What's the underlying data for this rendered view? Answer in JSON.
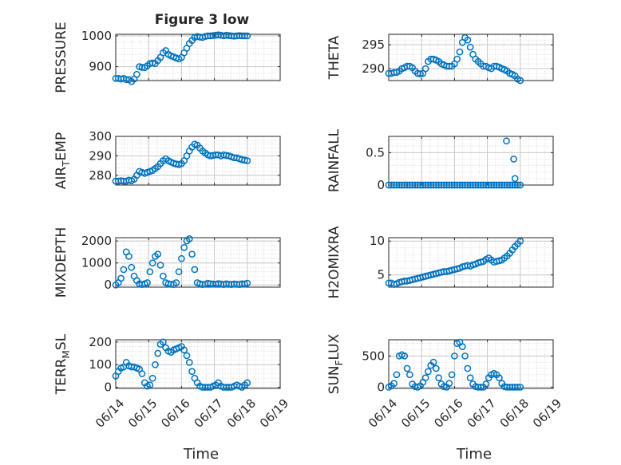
{
  "title": "Figure 3 low",
  "xlabel": "Time",
  "x_tick_labels": [
    "06/14",
    "06/15",
    "06/16",
    "06/17",
    "06/18",
    "06/19"
  ],
  "marker_color": "#0072bd",
  "chart_data": [
    {
      "id": "pressure",
      "type": "scatter",
      "ylabel": "PRESSURE",
      "xlim": [
        0,
        5
      ],
      "ylim": [
        855,
        1005
      ],
      "yticks": [
        900,
        1000
      ],
      "grid": true,
      "x": [
        0.0,
        0.08,
        0.16,
        0.24,
        0.32,
        0.4,
        0.48,
        0.56,
        0.64,
        0.72,
        0.8,
        0.88,
        0.96,
        1.04,
        1.12,
        1.2,
        1.28,
        1.36,
        1.44,
        1.52,
        1.6,
        1.68,
        1.76,
        1.84,
        1.92,
        2.0,
        2.08,
        2.16,
        2.24,
        2.32,
        2.4,
        2.48,
        2.56,
        2.64,
        2.72,
        2.8,
        2.88,
        2.96,
        3.04,
        3.12,
        3.2,
        3.28,
        3.36,
        3.44,
        3.52,
        3.6,
        3.68,
        3.76,
        3.84,
        3.92,
        4.0
      ],
      "y": [
        862,
        862,
        860,
        862,
        858,
        858,
        852,
        860,
        875,
        900,
        898,
        897,
        903,
        910,
        912,
        910,
        920,
        930,
        945,
        952,
        940,
        935,
        932,
        928,
        925,
        930,
        945,
        960,
        975,
        985,
        995,
        998,
        996,
        995,
        998,
        1000,
        1000,
        1001,
        1002,
        1003,
        1002,
        1000,
        1002,
        1001,
        1000,
        999,
        1000,
        1001,
        1000,
        1000,
        1000
      ]
    },
    {
      "id": "theta",
      "type": "scatter",
      "ylabel": "THETA",
      "xlim": [
        0,
        5
      ],
      "ylim": [
        287.5,
        297.2
      ],
      "yticks": [
        290,
        295
      ],
      "grid": true,
      "x": [
        0.0,
        0.08,
        0.16,
        0.24,
        0.32,
        0.4,
        0.48,
        0.56,
        0.64,
        0.72,
        0.8,
        0.88,
        0.96,
        1.04,
        1.12,
        1.2,
        1.28,
        1.36,
        1.44,
        1.52,
        1.6,
        1.68,
        1.76,
        1.84,
        1.92,
        2.0,
        2.08,
        2.16,
        2.24,
        2.32,
        2.4,
        2.48,
        2.56,
        2.64,
        2.72,
        2.8,
        2.88,
        2.96,
        3.04,
        3.12,
        3.2,
        3.28,
        3.36,
        3.44,
        3.52,
        3.6,
        3.68,
        3.76,
        3.84,
        3.92,
        4.0
      ],
      "y": [
        289.0,
        289.0,
        289.2,
        289.2,
        289.5,
        290.0,
        290.2,
        290.5,
        290.5,
        290.2,
        289.5,
        289.0,
        288.9,
        289.0,
        290.0,
        291.5,
        292.0,
        292.0,
        291.8,
        291.5,
        291.0,
        290.8,
        290.5,
        290.5,
        290.5,
        291.0,
        292.0,
        293.5,
        295.5,
        296.5,
        296.0,
        294.5,
        293.0,
        292.0,
        291.5,
        291.0,
        290.5,
        290.5,
        290.2,
        290.0,
        290.5,
        290.5,
        290.3,
        290.0,
        289.8,
        289.5,
        289.0,
        288.8,
        288.5,
        287.8,
        287.5
      ]
    },
    {
      "id": "air_temp",
      "type": "scatter",
      "ylabel": "AIR_TEMP",
      "xlim": [
        0,
        5
      ],
      "ylim": [
        275,
        300
      ],
      "yticks": [
        280,
        290,
        300
      ],
      "grid": true,
      "x": [
        0.0,
        0.08,
        0.16,
        0.24,
        0.32,
        0.4,
        0.48,
        0.56,
        0.64,
        0.72,
        0.8,
        0.88,
        0.96,
        1.04,
        1.12,
        1.2,
        1.28,
        1.36,
        1.44,
        1.52,
        1.6,
        1.68,
        1.76,
        1.84,
        1.92,
        2.0,
        2.08,
        2.16,
        2.24,
        2.32,
        2.4,
        2.48,
        2.56,
        2.64,
        2.72,
        2.8,
        2.88,
        2.96,
        3.04,
        3.12,
        3.2,
        3.28,
        3.36,
        3.44,
        3.52,
        3.6,
        3.68,
        3.76,
        3.84,
        3.92,
        4.0
      ],
      "y": [
        277.0,
        277.0,
        277.2,
        277.0,
        277.0,
        277.5,
        277.2,
        278.0,
        280.0,
        282.0,
        281.5,
        281.0,
        281.5,
        282.0,
        282.5,
        283.5,
        284.5,
        286.0,
        287.5,
        288.5,
        287.5,
        286.8,
        286.2,
        285.8,
        285.5,
        286.0,
        287.5,
        290.0,
        292.5,
        294.5,
        296.0,
        295.5,
        294.0,
        292.5,
        291.5,
        290.5,
        290.0,
        290.2,
        290.5,
        290.5,
        290.0,
        290.5,
        290.2,
        290.0,
        289.5,
        289.0,
        289.0,
        288.5,
        288.0,
        287.8,
        287.5
      ]
    },
    {
      "id": "rainfall",
      "type": "scatter",
      "ylabel": "RAINFALL",
      "xlim": [
        0,
        5
      ],
      "ylim": [
        0,
        0.75
      ],
      "yticks": [
        0,
        0.5
      ],
      "grid": true,
      "x": [
        0.0,
        0.08,
        0.16,
        0.24,
        0.32,
        0.4,
        0.48,
        0.56,
        0.64,
        0.72,
        0.8,
        0.88,
        0.96,
        1.04,
        1.12,
        1.2,
        1.28,
        1.36,
        1.44,
        1.52,
        1.6,
        1.68,
        1.76,
        1.84,
        1.92,
        2.0,
        2.08,
        2.16,
        2.24,
        2.32,
        2.4,
        2.48,
        2.56,
        2.64,
        2.72,
        2.8,
        2.88,
        2.96,
        3.04,
        3.12,
        3.2,
        3.28,
        3.36,
        3.44,
        3.52,
        3.6,
        3.68,
        3.76,
        3.84,
        3.92,
        4.0,
        3.58,
        3.8,
        3.84
      ],
      "y": [
        0,
        0,
        0,
        0,
        0,
        0,
        0,
        0,
        0,
        0,
        0,
        0,
        0,
        0,
        0,
        0,
        0,
        0,
        0,
        0,
        0,
        0,
        0,
        0,
        0,
        0,
        0,
        0,
        0,
        0,
        0,
        0,
        0,
        0,
        0,
        0,
        0,
        0,
        0,
        0,
        0,
        0,
        0,
        0,
        0,
        0,
        0,
        0,
        0,
        0,
        0,
        0.68,
        0.4,
        0.1
      ]
    },
    {
      "id": "mixdepth",
      "type": "scatter",
      "ylabel": "MIXDEPTH",
      "xlim": [
        0,
        5
      ],
      "ylim": [
        -100,
        2150
      ],
      "yticks": [
        0,
        1000,
        2000
      ],
      "grid": true,
      "x": [
        0.0,
        0.08,
        0.16,
        0.24,
        0.32,
        0.4,
        0.48,
        0.56,
        0.64,
        0.72,
        0.8,
        0.88,
        0.96,
        1.04,
        1.12,
        1.2,
        1.28,
        1.36,
        1.44,
        1.52,
        1.6,
        1.68,
        1.76,
        1.84,
        1.92,
        2.0,
        2.08,
        2.16,
        2.24,
        2.32,
        2.4,
        2.48,
        2.56,
        2.64,
        2.72,
        2.8,
        2.88,
        2.96,
        3.04,
        3.12,
        3.2,
        3.28,
        3.36,
        3.44,
        3.52,
        3.6,
        3.68,
        3.76,
        3.84,
        3.92,
        4.0
      ],
      "y": [
        0,
        100,
        300,
        700,
        1500,
        1300,
        800,
        400,
        200,
        50,
        20,
        50,
        100,
        600,
        1000,
        1300,
        1400,
        900,
        400,
        100,
        50,
        30,
        20,
        100,
        600,
        1200,
        1700,
        2000,
        2100,
        1400,
        700,
        100,
        50,
        20,
        30,
        80,
        50,
        40,
        30,
        60,
        40,
        20,
        50,
        30,
        20,
        40,
        30,
        20,
        50,
        40,
        80
      ]
    },
    {
      "id": "h2omixra",
      "type": "scatter",
      "ylabel": "H2OMIXRA",
      "xlim": [
        0,
        5
      ],
      "ylim": [
        3.2,
        10.5
      ],
      "yticks": [
        5,
        10
      ],
      "grid": true,
      "x": [
        0.0,
        0.08,
        0.16,
        0.24,
        0.32,
        0.4,
        0.48,
        0.56,
        0.64,
        0.72,
        0.8,
        0.88,
        0.96,
        1.04,
        1.12,
        1.2,
        1.28,
        1.36,
        1.44,
        1.52,
        1.6,
        1.68,
        1.76,
        1.84,
        1.92,
        2.0,
        2.08,
        2.16,
        2.24,
        2.32,
        2.4,
        2.48,
        2.56,
        2.64,
        2.72,
        2.8,
        2.88,
        2.96,
        3.04,
        3.12,
        3.2,
        3.28,
        3.36,
        3.44,
        3.52,
        3.6,
        3.68,
        3.76,
        3.84,
        3.92,
        4.0
      ],
      "y": [
        3.8,
        3.8,
        3.6,
        3.7,
        3.9,
        4.0,
        4.1,
        4.1,
        4.2,
        4.3,
        4.4,
        4.5,
        4.6,
        4.7,
        4.8,
        4.9,
        5.0,
        5.1,
        5.2,
        5.3,
        5.4,
        5.5,
        5.5,
        5.6,
        5.7,
        5.8,
        5.9,
        6.0,
        6.2,
        6.3,
        6.4,
        6.3,
        6.5,
        6.6,
        6.8,
        6.9,
        7.0,
        7.3,
        7.5,
        7.2,
        6.9,
        7.0,
        7.1,
        7.2,
        7.5,
        7.8,
        8.2,
        8.7,
        9.2,
        9.6,
        10.0
      ]
    },
    {
      "id": "terr_msl",
      "type": "scatter",
      "ylabel": "TERR_MSL",
      "xlim": [
        0,
        5
      ],
      "ylim": [
        -5,
        210
      ],
      "yticks": [
        0,
        100,
        200
      ],
      "grid": true,
      "x": [
        0.0,
        0.08,
        0.16,
        0.24,
        0.32,
        0.4,
        0.48,
        0.56,
        0.64,
        0.72,
        0.8,
        0.88,
        0.96,
        1.04,
        1.12,
        1.2,
        1.28,
        1.36,
        1.44,
        1.52,
        1.6,
        1.68,
        1.76,
        1.84,
        1.92,
        2.0,
        2.08,
        2.16,
        2.24,
        2.32,
        2.4,
        2.48,
        2.56,
        2.64,
        2.72,
        2.8,
        2.88,
        2.96,
        3.04,
        3.12,
        3.2,
        3.28,
        3.36,
        3.44,
        3.52,
        3.6,
        3.68,
        3.76,
        3.84,
        3.92,
        4.0
      ],
      "y": [
        50,
        70,
        85,
        90,
        110,
        95,
        90,
        90,
        85,
        80,
        60,
        20,
        5,
        10,
        40,
        100,
        150,
        190,
        200,
        175,
        160,
        155,
        165,
        170,
        175,
        180,
        165,
        140,
        110,
        70,
        40,
        20,
        5,
        0,
        0,
        0,
        0,
        5,
        10,
        20,
        5,
        0,
        0,
        0,
        0,
        5,
        10,
        5,
        0,
        10,
        20
      ]
    },
    {
      "id": "sun_flux",
      "type": "scatter",
      "ylabel": "SUN_FLUX",
      "xlim": [
        0,
        5
      ],
      "ylim": [
        -20,
        760
      ],
      "yticks": [
        0,
        500
      ],
      "grid": true,
      "x": [
        0.0,
        0.08,
        0.16,
        0.24,
        0.32,
        0.4,
        0.48,
        0.56,
        0.64,
        0.72,
        0.8,
        0.88,
        0.96,
        1.04,
        1.12,
        1.2,
        1.28,
        1.36,
        1.44,
        1.52,
        1.6,
        1.68,
        1.76,
        1.84,
        1.92,
        2.0,
        2.08,
        2.16,
        2.24,
        2.32,
        2.4,
        2.48,
        2.56,
        2.64,
        2.72,
        2.8,
        2.88,
        2.96,
        3.04,
        3.12,
        3.2,
        3.28,
        3.36,
        3.44,
        3.52,
        3.6,
        3.68,
        3.76,
        3.84,
        3.92,
        4.0
      ],
      "y": [
        0,
        20,
        60,
        200,
        500,
        520,
        500,
        300,
        200,
        50,
        10,
        0,
        20,
        80,
        150,
        250,
        350,
        400,
        300,
        150,
        50,
        10,
        0,
        60,
        200,
        500,
        700,
        720,
        650,
        500,
        300,
        150,
        50,
        10,
        0,
        0,
        0,
        50,
        150,
        200,
        220,
        200,
        150,
        60,
        10,
        0,
        0,
        0,
        0,
        0,
        0
      ]
    }
  ]
}
